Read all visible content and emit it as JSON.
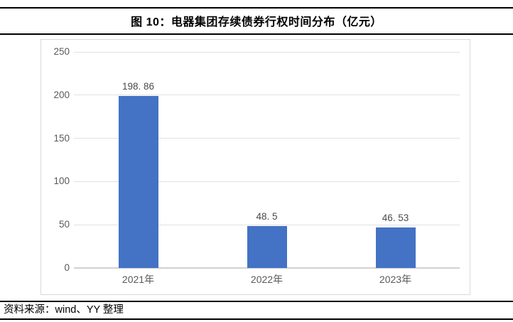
{
  "header": {
    "title": "图 10：电器集团存续债券行权时间分布（亿元）"
  },
  "footer": {
    "source_note": "资料来源：wind、YY 整理"
  },
  "colors": {
    "bar": "#4472C4",
    "gridline": "#e1e1e1",
    "axis_baseline": "#d1d1d1",
    "tick_label": "#595959",
    "value_label": "#4a4a4a",
    "chart_border": "#d9d9d9",
    "rule": "#000000",
    "background": "#ffffff"
  },
  "chart_data": {
    "type": "bar",
    "title": "图 10：电器集团存续债券行权时间分布（亿元）",
    "categories": [
      "2021年",
      "2022年",
      "2023年"
    ],
    "values": [
      198.86,
      48.5,
      46.53
    ],
    "value_labels": [
      "198. 86",
      "48. 5",
      "46. 53"
    ],
    "xlabel": "",
    "ylabel": "",
    "ylim": [
      0,
      250
    ],
    "yticks": [
      0,
      50,
      100,
      150,
      200,
      250
    ],
    "grid": true,
    "legend": "none",
    "bar_color": "#4472C4"
  }
}
